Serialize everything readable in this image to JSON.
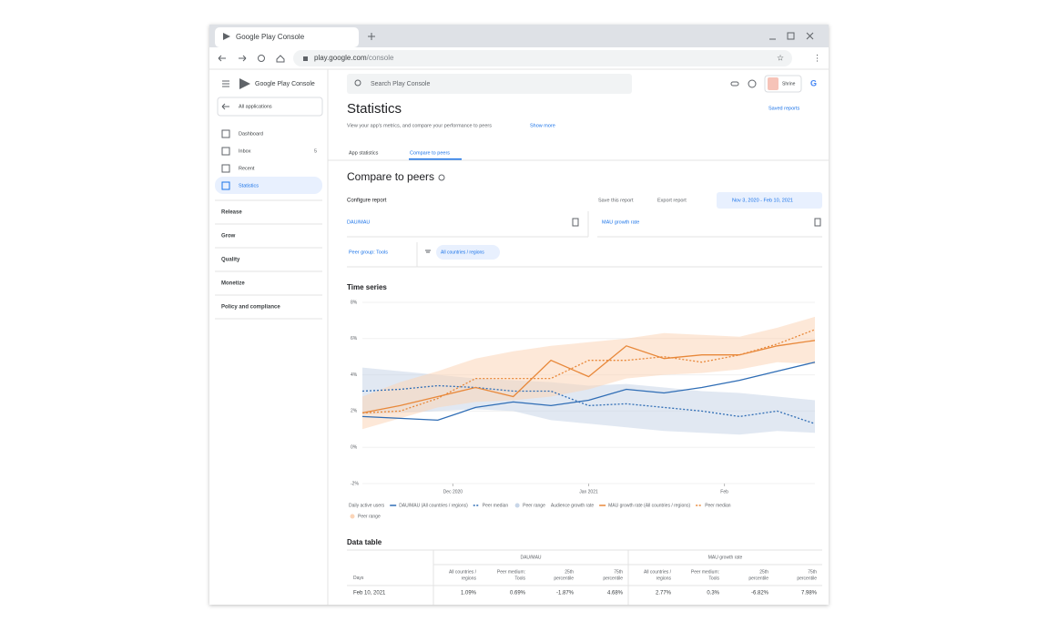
{
  "browser": {
    "tab_title": "Google Play Console",
    "url_host": "play.google.com",
    "url_path": "/console"
  },
  "sidebar": {
    "brand": "Google Play Console",
    "back": "All applications",
    "nav": [
      "Dashboard",
      "Inbox",
      "Recent",
      "Statistics"
    ],
    "inbox_count": "5",
    "sections": [
      "Release",
      "Grow",
      "Quality",
      "Monetize",
      "Policy and compliance"
    ]
  },
  "topbar": {
    "search": "Search Play Console",
    "account": "Shrine"
  },
  "header": {
    "title": "Statistics",
    "subtitle": "View your app's metrics, and compare your performance to peers",
    "show_more": "Show more",
    "saved_reports": "Saved reports"
  },
  "tabs": [
    "App statistics",
    "Compare to peers"
  ],
  "report": {
    "heading": "Compare to peers",
    "configure": "Configure report",
    "save": "Save this report",
    "export": "Export report",
    "date_range": "Nov 3, 2020 - Feb 10, 2021",
    "metric_left": "DAU/MAU",
    "metric_right": "MAU growth rate",
    "peer_group": "Peer group: Tools",
    "region_chip": "All countries / regions"
  },
  "time_series": {
    "title": "Time series",
    "type": "line",
    "ylim": [
      -2,
      8
    ],
    "yticks": [
      {
        "value": -2,
        "label": "-2%"
      },
      {
        "value": 0,
        "label": "0%"
      },
      {
        "value": 2,
        "label": "2%"
      },
      {
        "value": 4,
        "label": "4%"
      },
      {
        "value": 6,
        "label": "6%"
      },
      {
        "value": 8,
        "label": "8%"
      }
    ],
    "xlim": [
      0,
      12
    ],
    "xticks": [
      {
        "value": 2.4,
        "label": "Dec 2020"
      },
      {
        "value": 6,
        "label": "Jan 2021"
      },
      {
        "value": 9.6,
        "label": "Feb"
      }
    ],
    "grid": true,
    "groups": [
      {
        "name": "Daily active users",
        "series": [
          {
            "name": "DAU/MAU (All countries / regions)",
            "color": "#2f6db5",
            "style": "solid",
            "values": [
              1.7,
              1.6,
              1.5,
              2.2,
              2.5,
              2.3,
              2.6,
              3.2,
              3.0,
              3.3,
              3.7,
              4.2,
              4.7
            ]
          },
          {
            "name": "Peer median",
            "color": "#2f6db5",
            "style": "dashed",
            "values": [
              3.1,
              3.2,
              3.4,
              3.3,
              3.1,
              3.1,
              2.3,
              2.4,
              2.2,
              2.0,
              1.7,
              2.0,
              1.3
            ]
          },
          {
            "name": "Peer range",
            "color": "#c8d6e8",
            "style": "range",
            "low": [
              1.8,
              1.9,
              2.0,
              2.1,
              2.0,
              1.5,
              1.3,
              1.1,
              0.9,
              0.8,
              0.7,
              0.9,
              0.8
            ],
            "high": [
              4.4,
              4.2,
              4.0,
              3.8,
              3.7,
              3.6,
              3.4,
              3.5,
              3.3,
              3.1,
              3.0,
              2.8,
              2.6
            ]
          }
        ]
      },
      {
        "name": "Audience growth rate",
        "series": [
          {
            "name": "MAU growth rate (All countries / regions)",
            "color": "#e8883a",
            "style": "solid",
            "values": [
              1.9,
              2.3,
              2.8,
              3.3,
              2.8,
              4.8,
              3.9,
              5.6,
              4.9,
              5.1,
              5.1,
              5.6,
              5.9
            ]
          },
          {
            "name": "Peer median",
            "color": "#e8883a",
            "style": "dashed",
            "values": [
              1.9,
              2.0,
              2.7,
              3.8,
              3.8,
              3.8,
              4.8,
              4.8,
              5.0,
              4.7,
              5.1,
              5.7,
              6.5
            ]
          },
          {
            "name": "Peer range",
            "color": "#fbd5b8",
            "style": "range",
            "low": [
              1.0,
              1.6,
              2.2,
              2.5,
              2.6,
              2.8,
              3.2,
              3.8,
              4.0,
              4.1,
              4.3,
              4.7,
              4.6
            ],
            "high": [
              2.8,
              3.6,
              4.2,
              4.9,
              5.3,
              5.6,
              5.8,
              6.0,
              6.3,
              6.2,
              6.1,
              6.6,
              7.2
            ]
          }
        ]
      }
    ]
  },
  "data_table": {
    "title": "Data table",
    "groups": [
      "DAU/MAU",
      "MAU growth rate"
    ],
    "columns": [
      [
        "Days"
      ],
      [
        "All countries /",
        "regions"
      ],
      [
        "Peer medium:",
        "Tools"
      ],
      [
        "25th",
        "percentile"
      ],
      [
        "75th",
        "percentile"
      ],
      [
        "All countries /",
        "regions"
      ],
      [
        "Peer medium:",
        "Tools"
      ],
      [
        "25th",
        "percentile"
      ],
      [
        "75th",
        "percentile"
      ]
    ],
    "rows": [
      [
        "Feb 10, 2021",
        "1.09%",
        "0.69%",
        "-1.87%",
        "4.68%",
        "2.77%",
        "0.3%",
        "-6.82%",
        "7.98%"
      ]
    ]
  }
}
